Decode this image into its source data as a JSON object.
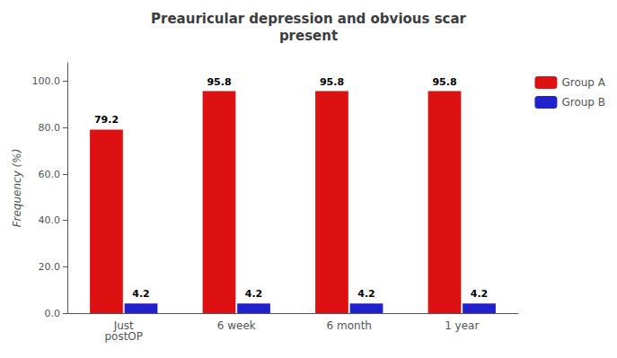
{
  "chart_data": {
    "type": "bar",
    "title": "Preauricular depression and obvious scar\npresent",
    "categories": [
      "Just\npostOP",
      "6 week",
      "6 month",
      "1 year"
    ],
    "series": [
      {
        "name": "Group A",
        "color": "#dd1111",
        "values": [
          79.2,
          95.8,
          95.8,
          95.8
        ]
      },
      {
        "name": "Group B",
        "color": "#2222cc",
        "values": [
          4.2,
          4.2,
          4.2,
          4.2
        ]
      }
    ],
    "ylabel": "Frequency (%)",
    "ylim": [
      0,
      108
    ],
    "yticks": [
      {
        "value": 0,
        "label": "0.0"
      },
      {
        "value": 20,
        "label": "20.0"
      },
      {
        "value": 40,
        "label": "40.0"
      },
      {
        "value": 60,
        "label": "60.0"
      },
      {
        "value": 80,
        "label": "80.0"
      },
      {
        "value": 100,
        "label": "100.0"
      }
    ],
    "grid": false,
    "legend": "upper right",
    "data_labels": true
  }
}
